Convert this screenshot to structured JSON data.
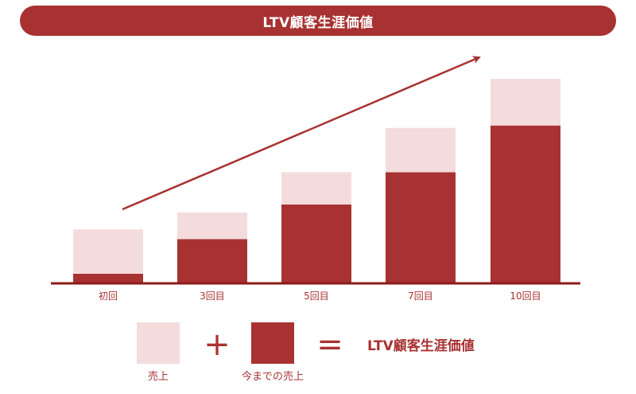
{
  "title": "LTV顧客生涯価値",
  "colors": {
    "dark": "#a83232",
    "light": "#f5dcdc"
  },
  "chart_data": {
    "type": "bar",
    "stacked": true,
    "categories": [
      "初回",
      "3回目",
      "5回目",
      "7回目",
      "10回目"
    ],
    "series": [
      {
        "name": "今までの売上",
        "color": "#a83232",
        "values": [
          12,
          55,
          98,
          138,
          196
        ]
      },
      {
        "name": "売上",
        "color": "#f5dcdc",
        "values": [
          55,
          33,
          40,
          55,
          58
        ]
      }
    ],
    "ylim": [
      0,
      260
    ],
    "grid": false,
    "trend_arrow": true
  },
  "legend": {
    "sales_label": "売上",
    "cumulative_label": "今までの売上",
    "plus": "+",
    "equals": "=",
    "result_label": "LTV顧客生涯価値"
  }
}
